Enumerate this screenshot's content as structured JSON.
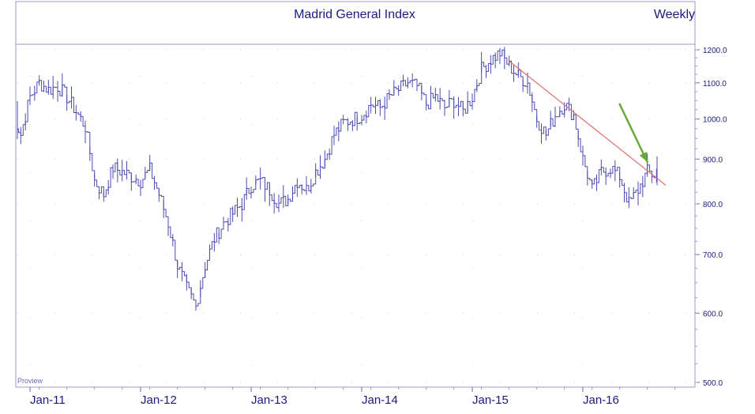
{
  "chart_data": {
    "type": "line",
    "title": "Madrid General Index",
    "period_label": "Weekly",
    "watermark": "Proview",
    "xlabel": "",
    "ylabel": "",
    "y_scale": "log",
    "ylim": [
      480,
      1230
    ],
    "y_ticks": [
      {
        "value": 1200,
        "label": "1200.0"
      },
      {
        "value": 1100,
        "label": "1100.0"
      },
      {
        "value": 1000,
        "label": "1000.0"
      },
      {
        "value": 900,
        "label": "900.0"
      },
      {
        "value": 800,
        "label": "800.0"
      },
      {
        "value": 700,
        "label": "700.0"
      },
      {
        "value": 600,
        "label": "600.0"
      },
      {
        "value": 500,
        "label": "500.0"
      }
    ],
    "x_ticks": [
      "Jan-11",
      "Jan-12",
      "Jan-13",
      "Jan-14",
      "Jan-15",
      "Jan-16"
    ],
    "x_start": "2010-11",
    "x_end": "2016-11",
    "grid": true,
    "colors": {
      "price": "#4b4bb0",
      "text": "#1a1a80",
      "trendline": "#e07070",
      "arrow": "#6aaa3a",
      "frame": "#9a9ac8"
    },
    "series": [
      {
        "name": "",
        "x": [
          "2010-11",
          "2010-12",
          "2011-01",
          "2011-02",
          "2011-03",
          "2011-04",
          "2011-05",
          "2011-06",
          "2011-07",
          "2011-08",
          "2011-09",
          "2011-10",
          "2011-11",
          "2011-12",
          "2012-01",
          "2012-02",
          "2012-03",
          "2012-04",
          "2012-05",
          "2012-06",
          "2012-07",
          "2012-08",
          "2012-09",
          "2012-10",
          "2012-11",
          "2012-12",
          "2013-01",
          "2013-02",
          "2013-03",
          "2013-04",
          "2013-05",
          "2013-06",
          "2013-07",
          "2013-08",
          "2013-09",
          "2013-10",
          "2013-11",
          "2013-12",
          "2014-01",
          "2014-02",
          "2014-03",
          "2014-04",
          "2014-05",
          "2014-06",
          "2014-07",
          "2014-08",
          "2014-09",
          "2014-10",
          "2014-11",
          "2014-12",
          "2015-01",
          "2015-02",
          "2015-03",
          "2015-04",
          "2015-05",
          "2015-06",
          "2015-07",
          "2015-08",
          "2015-09",
          "2015-10",
          "2015-11",
          "2015-12",
          "2016-01",
          "2016-02",
          "2016-03",
          "2016-04",
          "2016-05",
          "2016-06",
          "2016-07",
          "2016-08",
          "2016-09",
          "2016-10"
        ],
        "values": [
          1020,
          960,
          1060,
          1100,
          1080,
          1090,
          1060,
          1020,
          980,
          850,
          820,
          880,
          870,
          860,
          850,
          875,
          820,
          760,
          680,
          640,
          610,
          680,
          730,
          760,
          780,
          800,
          840,
          850,
          830,
          800,
          810,
          850,
          830,
          870,
          900,
          960,
          990,
          1000,
          1010,
          1040,
          1030,
          1060,
          1080,
          1100,
          1090,
          1040,
          1060,
          1030,
          1050,
          1020,
          1060,
          1140,
          1170,
          1190,
          1150,
          1120,
          1100,
          1000,
          960,
          1010,
          1040,
          1010,
          900,
          830,
          870,
          880,
          860,
          800,
          830,
          870,
          860,
          880
        ]
      }
    ],
    "annotations": [
      {
        "type": "trendline",
        "from": {
          "x": "2015-05",
          "y": 1165
        },
        "to": {
          "x": "2016-10",
          "y": 840
        }
      },
      {
        "type": "arrow",
        "from": {
          "x": "2016-05",
          "y": 1040
        },
        "to": {
          "x": "2016-08",
          "y": 893
        }
      }
    ]
  }
}
